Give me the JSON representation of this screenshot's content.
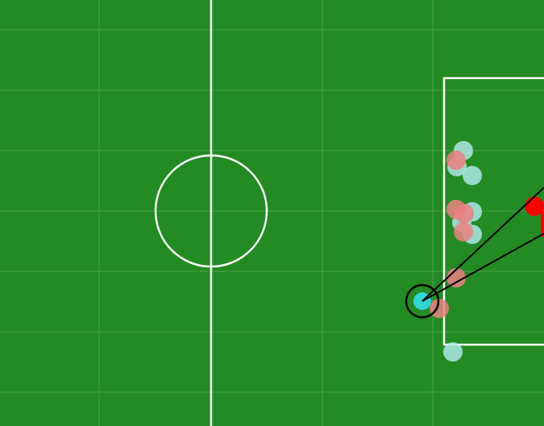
{
  "colors": {
    "pitch": "#228B22",
    "grid_line": "#5aad5a",
    "field_line": "#ffffff",
    "teammate": "#aee6e6",
    "opponent": "#eb8080",
    "ball_carrier": "#2fd6d6",
    "goalkeeper": "#ff0000",
    "shot_cone": "#000000"
  },
  "teammates": [
    {
      "id": "teammate-1",
      "role": "outfield"
    },
    {
      "id": "teammate-2",
      "role": "outfield"
    },
    {
      "id": "teammate-3",
      "role": "outfield"
    },
    {
      "id": "teammate-4",
      "role": "outfield"
    },
    {
      "id": "teammate-5",
      "role": "outfield"
    },
    {
      "id": "teammate-6",
      "role": "outfield"
    },
    {
      "id": "teammate-7",
      "role": "outfield"
    }
  ],
  "opponents": [
    {
      "id": "opponent-1",
      "role": "outfield"
    },
    {
      "id": "opponent-2",
      "role": "outfield"
    },
    {
      "id": "opponent-3",
      "role": "outfield"
    },
    {
      "id": "opponent-4",
      "role": "outfield"
    },
    {
      "id": "opponent-5",
      "role": "outfield"
    },
    {
      "id": "opponent-6",
      "role": "outfield"
    }
  ],
  "ball_carrier": {
    "id": "ball-carrier",
    "highlighted": true
  },
  "goalkeeper": {
    "id": "opponent-goalkeeper"
  },
  "shot_cone": {
    "visible": true
  }
}
